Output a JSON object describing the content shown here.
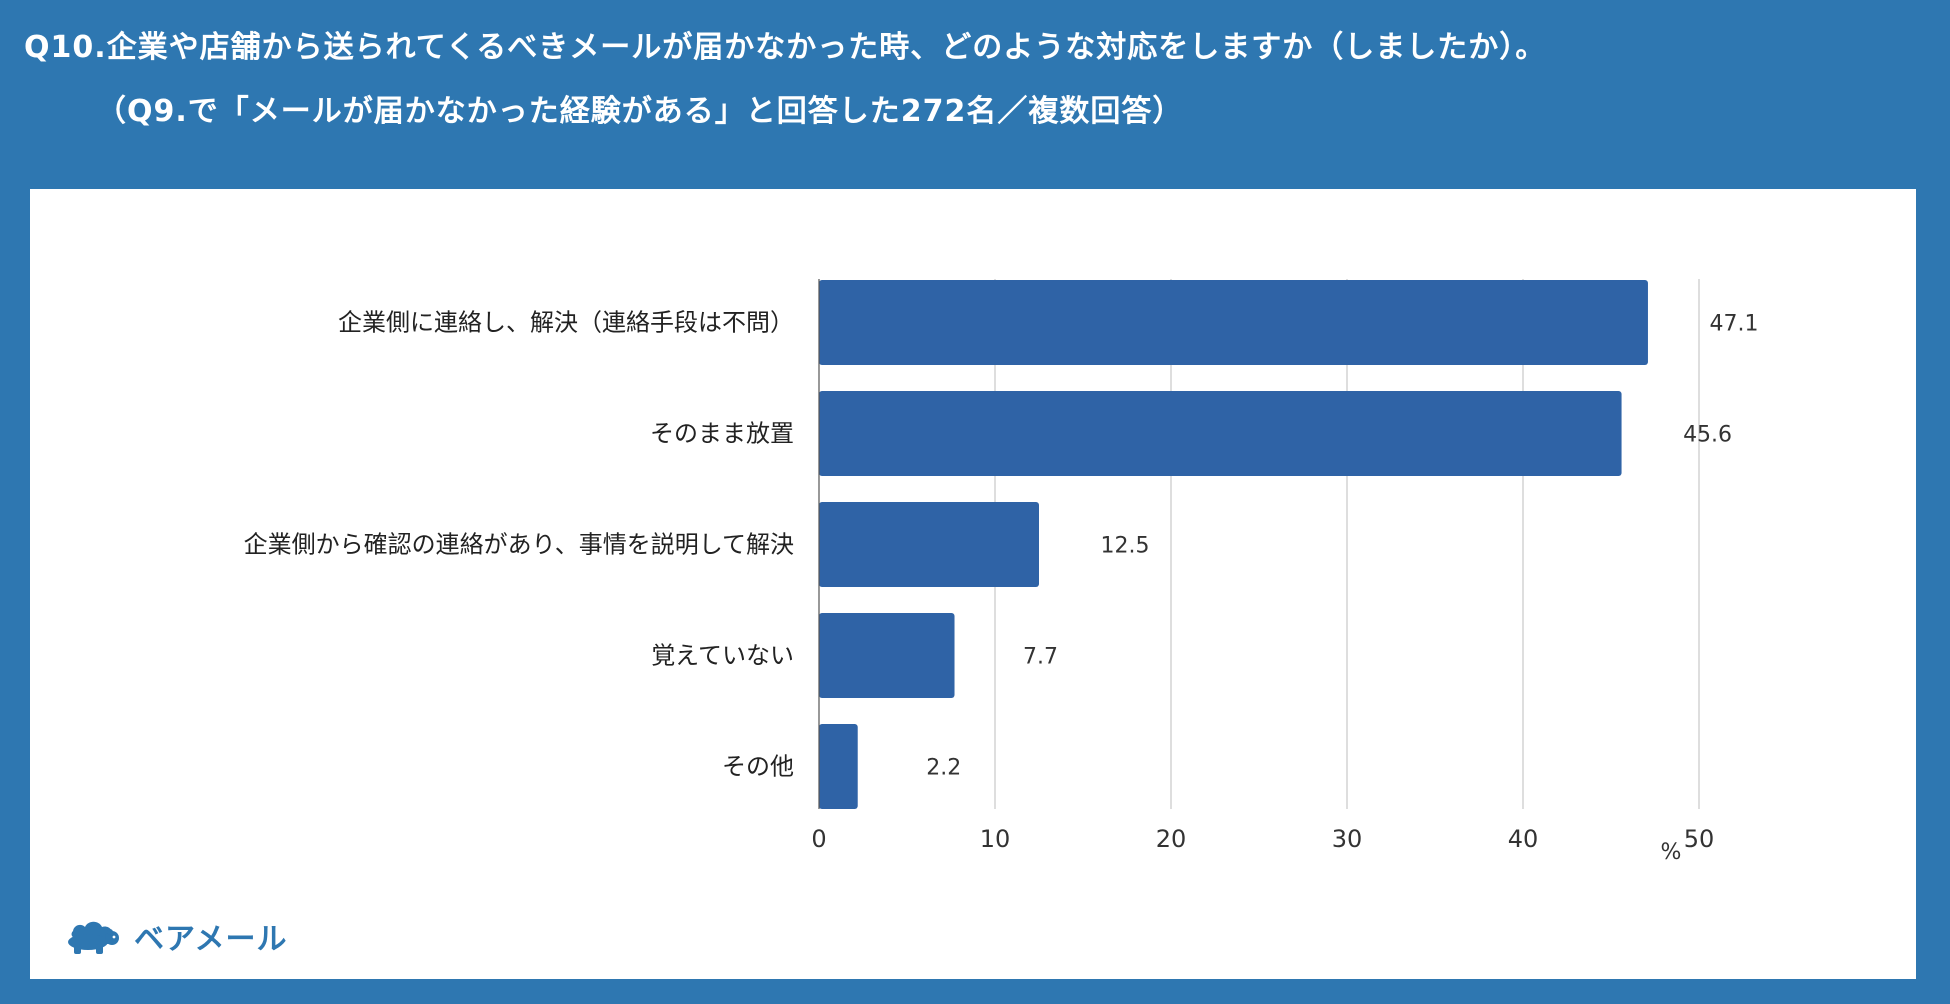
{
  "header": {
    "title_line1": "Q10.企業や店舗から送られてくるべきメールが届かなかった時、どのような対応をしますか（しましたか）。",
    "title_line2": "（Q9.で「メールが届かなかった経験がある」と回答した272名／複数回答）"
  },
  "logo": {
    "text": "ベアメール",
    "icon": "bear-cloud-icon",
    "color": "#2e77b1"
  },
  "colors": {
    "background": "#2e77b1",
    "bar": "#2f63a6",
    "grid": "#c8c8c8"
  },
  "chart_data": {
    "type": "bar",
    "orientation": "horizontal",
    "categories": [
      "企業側に連絡し、解決（連絡手段は不問）",
      "そのまま放置",
      "企業側から確認の連絡があり、事情を説明して解決",
      "覚えていない",
      "その他"
    ],
    "values": [
      47.1,
      45.6,
      12.5,
      7.7,
      2.2
    ],
    "value_labels": [
      "47.1",
      "45.6",
      "12.5",
      "7.7",
      "2.2"
    ],
    "xticks": [
      "0",
      "10",
      "20",
      "30",
      "40",
      "50"
    ],
    "xlim": [
      0,
      50
    ],
    "unit": "%",
    "grid": true
  }
}
